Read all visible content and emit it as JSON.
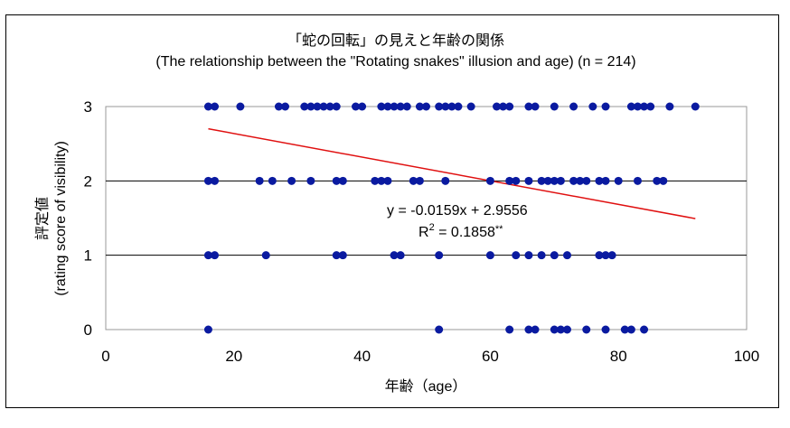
{
  "chart_data": {
    "type": "scatter",
    "title": "「蛇の回転」の見えと年齢の関係",
    "subtitle": "(The relationship between the \"Rotating snakes\" illusion and age) (n = 214)",
    "xlabel": "年齢（age）",
    "ylabel_line1": "評定値",
    "ylabel_line2": "(rating score of visibility)",
    "xlim": [
      0,
      100
    ],
    "ylim": [
      0,
      3
    ],
    "x_ticks": [
      "0",
      "20",
      "40",
      "60",
      "80",
      "100"
    ],
    "y_ticks": [
      "0",
      "1",
      "2",
      "3"
    ],
    "grid": "horizontal",
    "point_color": "#0a1aa0",
    "trend_color": "#e01010",
    "series": [
      {
        "points": [
          [
            16,
            3
          ],
          [
            17,
            3
          ],
          [
            21,
            3
          ],
          [
            27,
            3
          ],
          [
            28,
            3
          ],
          [
            31,
            3
          ],
          [
            32,
            3
          ],
          [
            33,
            3
          ],
          [
            34,
            3
          ],
          [
            35,
            3
          ],
          [
            36,
            3
          ],
          [
            39,
            3
          ],
          [
            40,
            3
          ],
          [
            43,
            3
          ],
          [
            44,
            3
          ],
          [
            45,
            3
          ],
          [
            46,
            3
          ],
          [
            47,
            3
          ],
          [
            49,
            3
          ],
          [
            50,
            3
          ],
          [
            52,
            3
          ],
          [
            53,
            3
          ],
          [
            54,
            3
          ],
          [
            55,
            3
          ],
          [
            57,
            3
          ],
          [
            61,
            3
          ],
          [
            62,
            3
          ],
          [
            63,
            3
          ],
          [
            66,
            3
          ],
          [
            67,
            3
          ],
          [
            70,
            3
          ],
          [
            73,
            3
          ],
          [
            76,
            3
          ],
          [
            78,
            3
          ],
          [
            82,
            3
          ],
          [
            83,
            3
          ],
          [
            84,
            3
          ],
          [
            85,
            3
          ],
          [
            88,
            3
          ],
          [
            92,
            3
          ],
          [
            16,
            2
          ],
          [
            17,
            2
          ],
          [
            24,
            2
          ],
          [
            26,
            2
          ],
          [
            29,
            2
          ],
          [
            32,
            2
          ],
          [
            36,
            2
          ],
          [
            37,
            2
          ],
          [
            42,
            2
          ],
          [
            43,
            2
          ],
          [
            44,
            2
          ],
          [
            48,
            2
          ],
          [
            49,
            2
          ],
          [
            53,
            2
          ],
          [
            60,
            2
          ],
          [
            63,
            2
          ],
          [
            64,
            2
          ],
          [
            66,
            2
          ],
          [
            68,
            2
          ],
          [
            69,
            2
          ],
          [
            70,
            2
          ],
          [
            71,
            2
          ],
          [
            73,
            2
          ],
          [
            74,
            2
          ],
          [
            75,
            2
          ],
          [
            77,
            2
          ],
          [
            78,
            2
          ],
          [
            80,
            2
          ],
          [
            83,
            2
          ],
          [
            86,
            2
          ],
          [
            87,
            2
          ],
          [
            16,
            1
          ],
          [
            17,
            1
          ],
          [
            25,
            1
          ],
          [
            36,
            1
          ],
          [
            37,
            1
          ],
          [
            45,
            1
          ],
          [
            46,
            1
          ],
          [
            52,
            1
          ],
          [
            60,
            1
          ],
          [
            64,
            1
          ],
          [
            66,
            1
          ],
          [
            68,
            1
          ],
          [
            70,
            1
          ],
          [
            72,
            1
          ],
          [
            77,
            1
          ],
          [
            78,
            1
          ],
          [
            79,
            1
          ],
          [
            16,
            0
          ],
          [
            52,
            0
          ],
          [
            63,
            0
          ],
          [
            66,
            0
          ],
          [
            67,
            0
          ],
          [
            70,
            0
          ],
          [
            71,
            0
          ],
          [
            72,
            0
          ],
          [
            75,
            0
          ],
          [
            78,
            0
          ],
          [
            81,
            0
          ],
          [
            82,
            0
          ],
          [
            84,
            0
          ]
        ]
      }
    ],
    "trendline": {
      "slope": -0.0159,
      "intercept": 2.9556,
      "x_range": [
        16,
        92
      ]
    },
    "annotations": {
      "equation": "y = -0.0159x + 2.9556",
      "r2_prefix": "R",
      "r2_sup": "2",
      "r2_value": " = 0.1858",
      "r2_sig": "**"
    }
  }
}
